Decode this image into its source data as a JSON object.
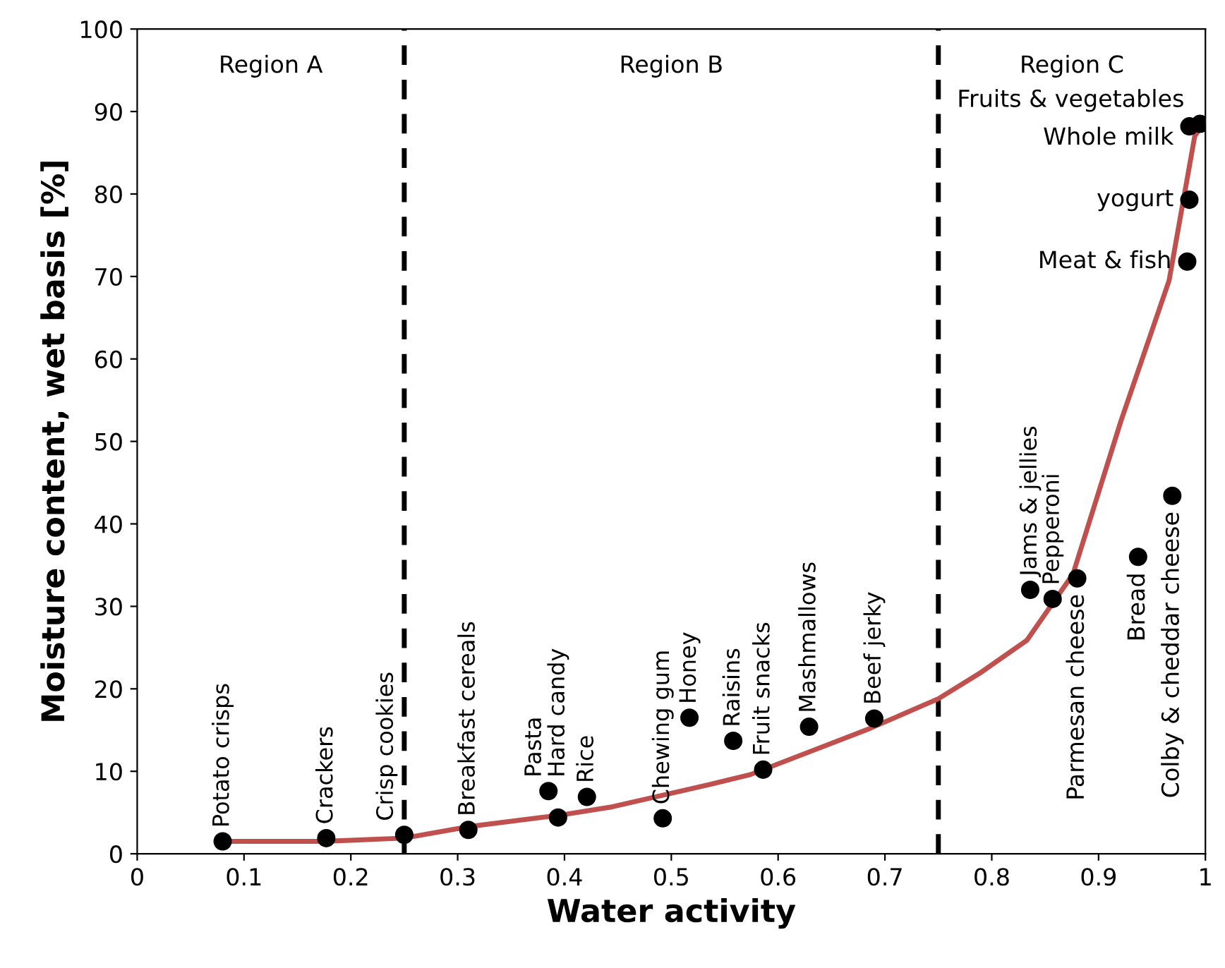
{
  "chart_data": {
    "type": "scatter",
    "xlabel": "Water activity",
    "ylabel": "Moisture content, wet basis [%]",
    "xlim": [
      0,
      1
    ],
    "ylim": [
      0,
      100
    ],
    "xticks": [
      0,
      0.1,
      0.2,
      0.3,
      0.4,
      0.5,
      0.6,
      0.7,
      0.8,
      0.9,
      1
    ],
    "yticks": [
      0,
      10,
      20,
      30,
      40,
      50,
      60,
      70,
      80,
      90,
      100
    ],
    "grid": false,
    "legend": false,
    "series": [
      {
        "type": "scatter",
        "color": "#000000",
        "marker": "circle",
        "x": [
          0.08,
          0.177,
          0.25,
          0.31,
          0.385,
          0.394,
          0.421,
          0.492,
          0.517,
          0.558,
          0.586,
          0.629,
          0.69,
          0.836,
          0.857,
          0.88,
          0.937,
          0.969,
          0.995,
          0.985,
          0.985,
          0.983
        ],
        "values": [
          1.5,
          1.9,
          2.3,
          2.9,
          7.6,
          4.4,
          6.9,
          4.3,
          16.5,
          13.7,
          10.2,
          15.4,
          16.4,
          32.0,
          30.9,
          33.4,
          36.0,
          43.4,
          88.5,
          88.2,
          79.3,
          71.8
        ]
      },
      {
        "type": "line",
        "color": "#c0504d",
        "marker": "none",
        "line_style": "solid",
        "x": [
          0.08,
          0.173,
          0.25,
          0.311,
          0.397,
          0.445,
          0.536,
          0.574,
          0.686,
          0.75,
          0.79,
          0.833,
          0.876,
          0.921,
          0.966,
          0.99,
          1.0
        ],
        "values": [
          1.5,
          1.5,
          1.9,
          3.3,
          4.7,
          5.7,
          8.4,
          9.6,
          15.2,
          18.8,
          22,
          25.9,
          33.9,
          52.5,
          69.5,
          87,
          89
        ]
      }
    ],
    "ref_lines": [
      {
        "axis": "x",
        "value": 0.25,
        "color": "#000000",
        "line_style": "dashed"
      },
      {
        "axis": "x",
        "value": 0.75,
        "color": "#000000",
        "line_style": "dashed"
      }
    ],
    "annotations": [
      "Region A",
      "Region B",
      "Region C",
      {
        "text": "Potato crisps",
        "x": 0.08,
        "y": 1.5
      },
      {
        "text": "Crackers",
        "x": 0.177,
        "y": 1.9
      },
      {
        "text": "Crisp cookies",
        "x": 0.25,
        "y": 2.3
      },
      {
        "text": "Breakfast cereals",
        "x": 0.31,
        "y": 2.9
      },
      {
        "text": "Pasta",
        "x": 0.385,
        "y": 7.6
      },
      {
        "text": "Hard candy",
        "x": 0.394,
        "y": 4.4
      },
      {
        "text": "Rice",
        "x": 0.421,
        "y": 6.9
      },
      {
        "text": "Chewing gum",
        "x": 0.492,
        "y": 4.3
      },
      {
        "text": "Honey",
        "x": 0.517,
        "y": 16.5
      },
      {
        "text": "Raisins",
        "x": 0.558,
        "y": 13.7
      },
      {
        "text": "Fruit snacks",
        "x": 0.586,
        "y": 10.2
      },
      {
        "text": "Mashmallows",
        "x": 0.629,
        "y": 15.4
      },
      {
        "text": "Beef jerky",
        "x": 0.69,
        "y": 16.4
      },
      {
        "text": "Jams & jellies",
        "x": 0.836,
        "y": 32.0
      },
      {
        "text": "Pepperoni",
        "x": 0.857,
        "y": 30.9
      },
      {
        "text": "Parmesan cheese",
        "x": 0.88,
        "y": 33.4
      },
      {
        "text": "Bread",
        "x": 0.937,
        "y": 36.0
      },
      {
        "text": "Colby & cheddar cheese",
        "x": 0.969,
        "y": 43.4
      },
      {
        "text": "Fruits & vegetables",
        "x": 0.995,
        "y": 88.5
      },
      {
        "text": "Whole milk",
        "x": 0.985,
        "y": 88.2
      },
      {
        "text": "yogurt",
        "x": 0.985,
        "y": 79.3
      },
      {
        "text": "Meat & fish",
        "x": 0.983,
        "y": 71.8
      }
    ]
  }
}
